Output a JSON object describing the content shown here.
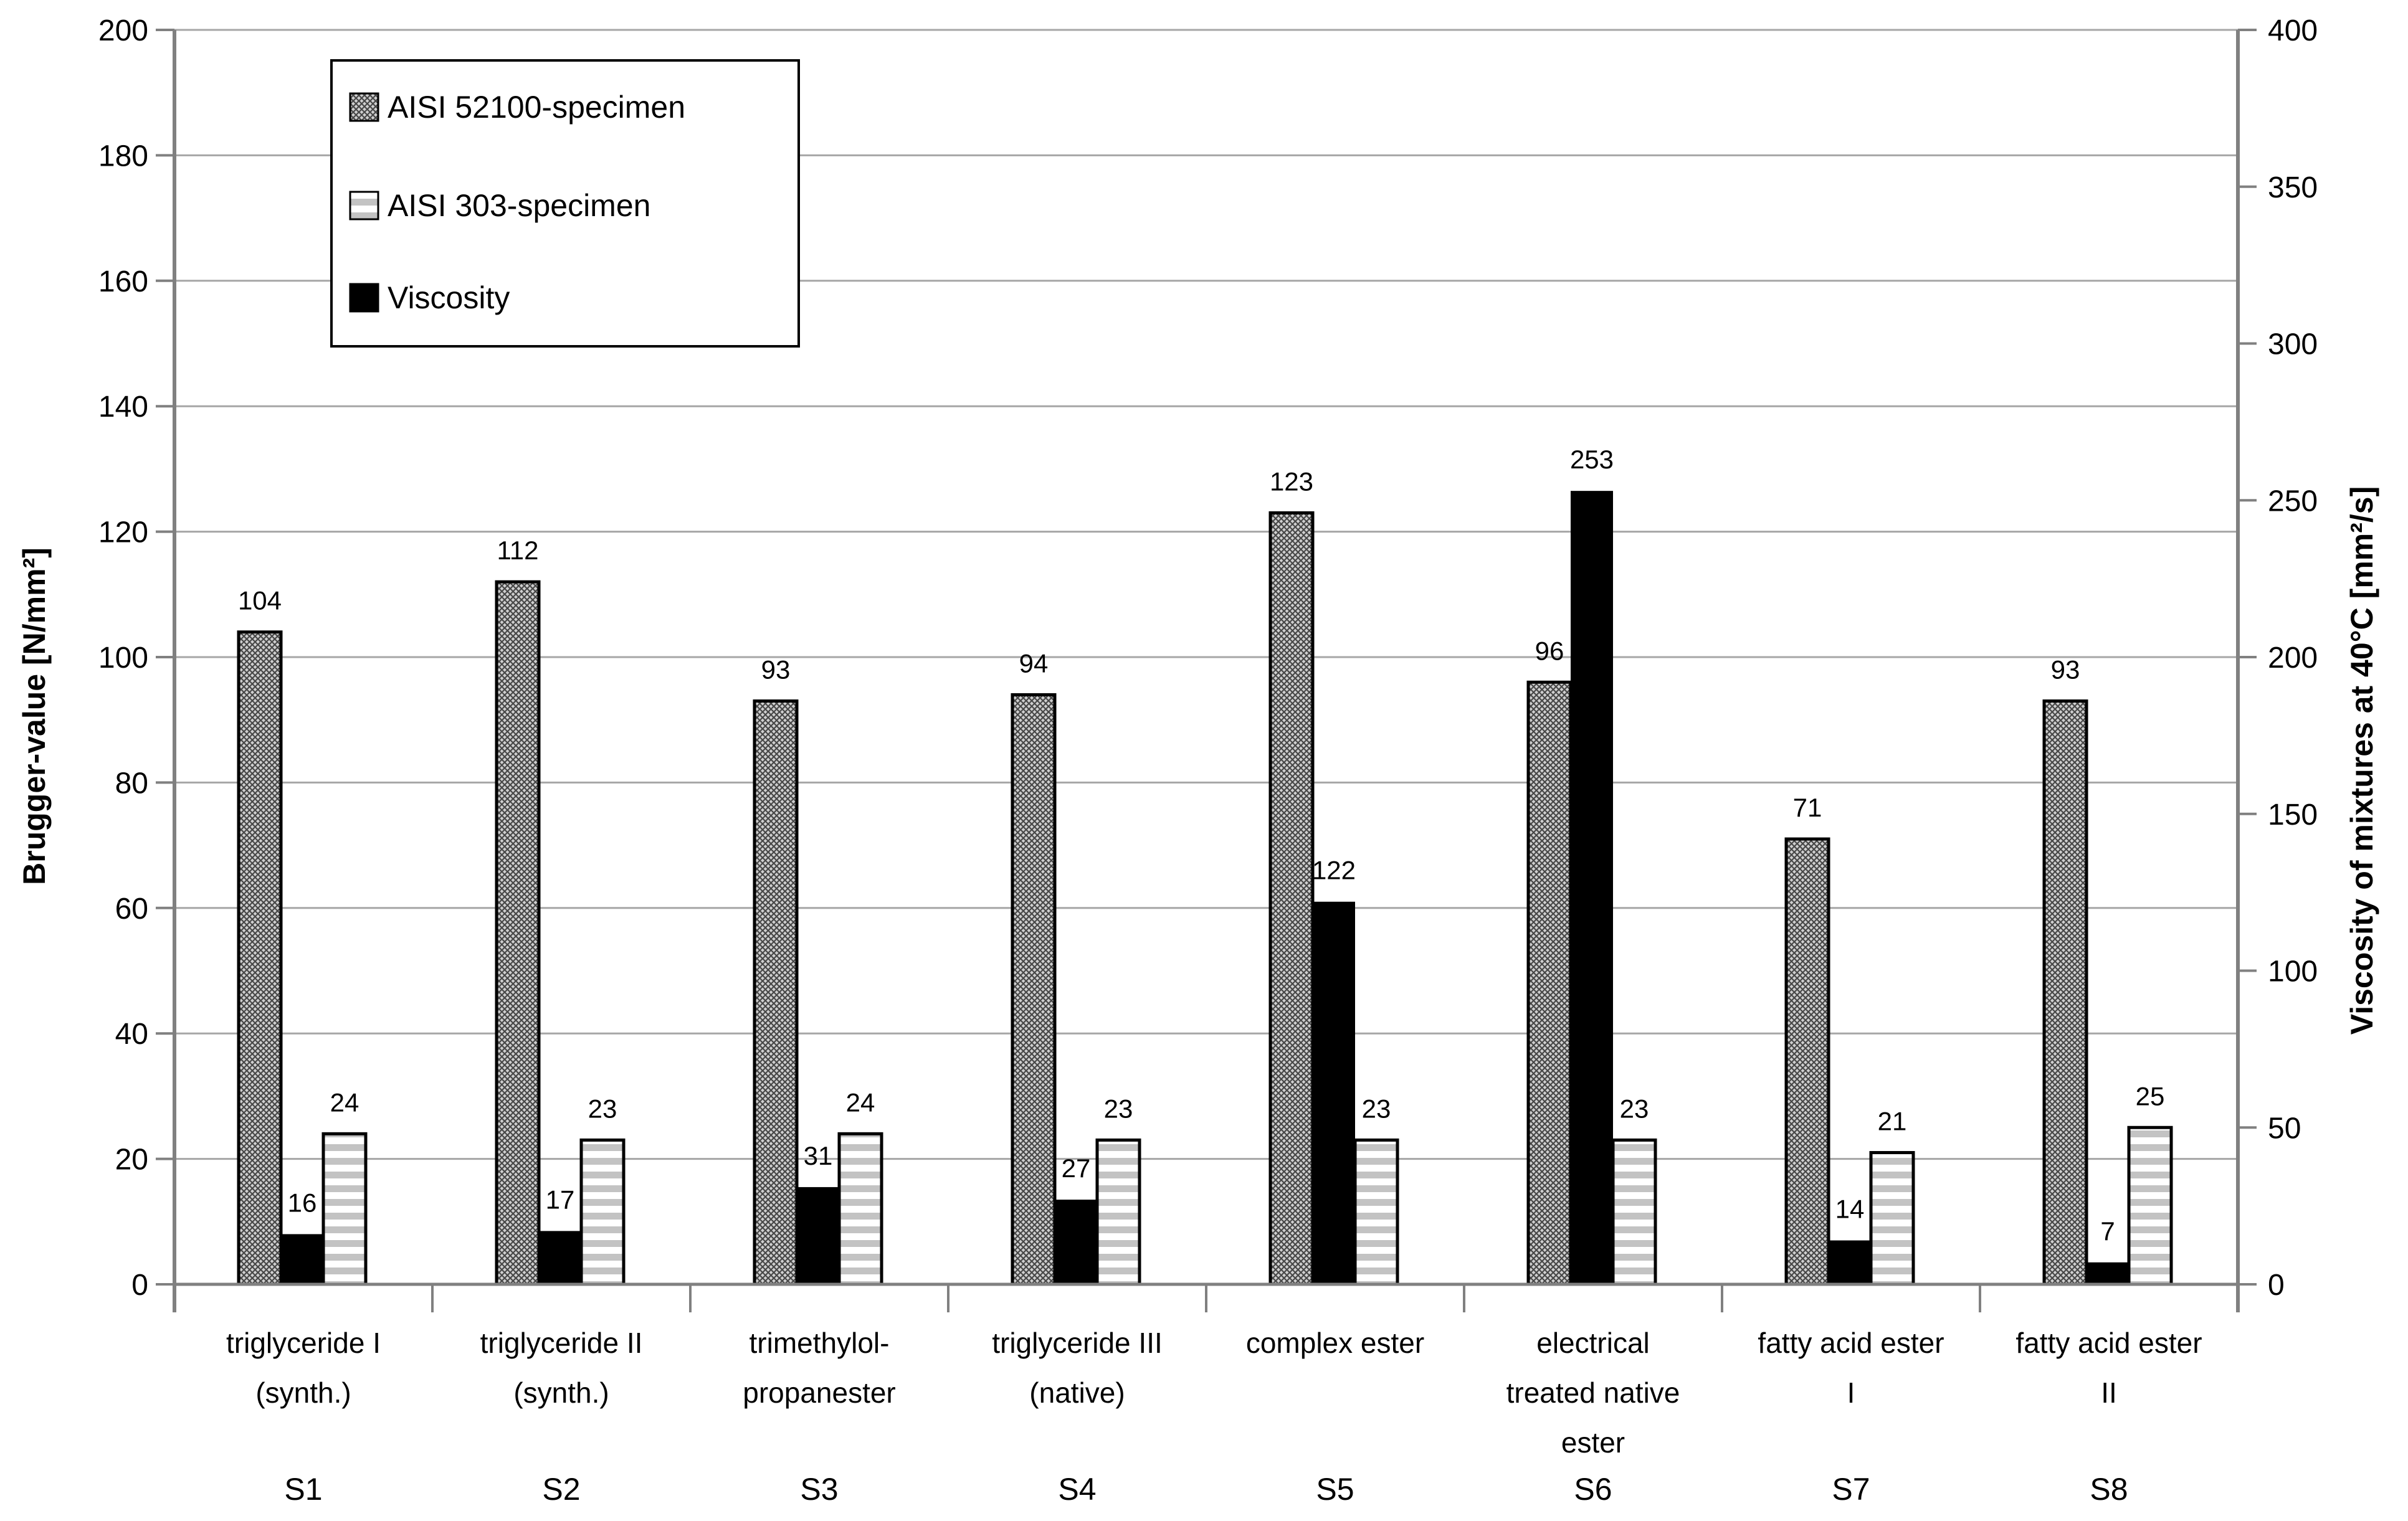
{
  "chart_data": {
    "type": "bar",
    "title": "",
    "categories": [
      {
        "code": "S1",
        "label_lines": [
          "triglyceride I",
          "(synth.)"
        ]
      },
      {
        "code": "S2",
        "label_lines": [
          "triglyceride II",
          "(synth.)"
        ]
      },
      {
        "code": "S3",
        "label_lines": [
          "trimethylol-",
          "propanester"
        ]
      },
      {
        "code": "S4",
        "label_lines": [
          "triglyceride III",
          "(native)"
        ]
      },
      {
        "code": "S5",
        "label_lines": [
          "complex ester"
        ]
      },
      {
        "code": "S6",
        "label_lines": [
          "electrical",
          "treated native",
          "ester"
        ]
      },
      {
        "code": "S7",
        "label_lines": [
          "fatty acid ester",
          "I"
        ]
      },
      {
        "code": "S8",
        "label_lines": [
          "fatty acid ester",
          "II"
        ]
      }
    ],
    "series": [
      {
        "name": "AISI 52100-specimen",
        "axis": "left",
        "pattern": "crosshatch",
        "slot": 0,
        "values": [
          104,
          112,
          93,
          94,
          123,
          96,
          71,
          93
        ]
      },
      {
        "name": "AISI 303-specimen",
        "axis": "left",
        "pattern": "stripes",
        "slot": 2,
        "values": [
          24,
          23,
          24,
          23,
          23,
          23,
          21,
          25
        ]
      },
      {
        "name": "Viscosity",
        "axis": "right",
        "pattern": "solid",
        "slot": 1,
        "values": [
          16,
          17,
          31,
          27,
          122,
          253,
          14,
          7
        ]
      }
    ],
    "axes": {
      "left": {
        "label": "Brugger-value [N/mm²]",
        "min": 0,
        "max": 200,
        "step": 20
      },
      "right": {
        "label": "Viscosity of mixtures at 40°C [mm²/s]",
        "min": 0,
        "max": 400,
        "step": 50
      }
    },
    "legend_position": "top-left",
    "grid": true,
    "colors": {
      "gridline": "#A6A6A6",
      "axis": "#808080",
      "bar_border": "#000000",
      "solid_bar": "#000000",
      "stripe_gray": "#C3C3C3",
      "hatch_bg": "#CFCFCF",
      "hatch_line": "#474747"
    }
  }
}
